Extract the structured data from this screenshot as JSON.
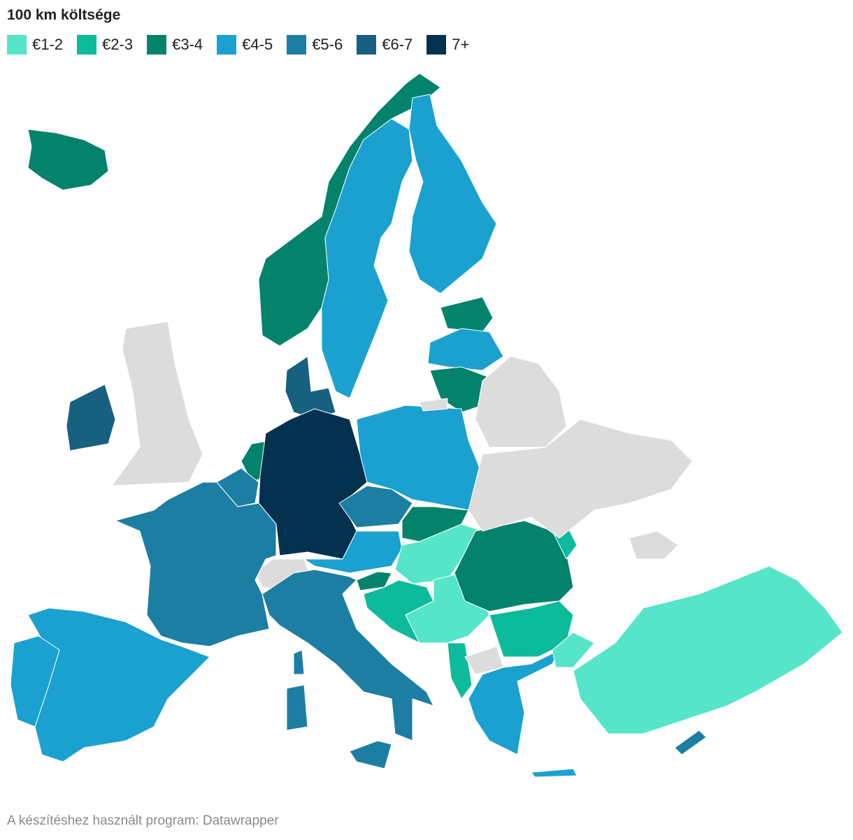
{
  "title": "100 km költsége",
  "legend": [
    {
      "label": "€1-2",
      "color": "#55e5c9"
    },
    {
      "label": "€2-3",
      "color": "#0bbb9b"
    },
    {
      "label": "€3-4",
      "color": "#03836b"
    },
    {
      "label": "€4-5",
      "color": "#1aa1d0"
    },
    {
      "label": "€5-6",
      "color": "#1d7ea3"
    },
    {
      "label": "€6-7",
      "color": "#17607f"
    },
    {
      "label": "7+",
      "color": "#04314f"
    }
  ],
  "footer": "A készítéshez használt program: Datawrapper"
}
